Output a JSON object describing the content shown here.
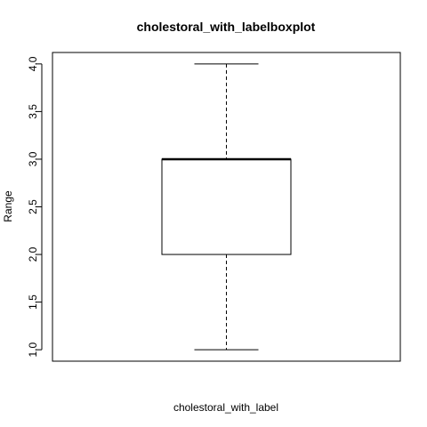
{
  "chart_data": {
    "type": "boxplot",
    "title": "cholestoral_with_labelboxplot",
    "xlabel": "cholestoral_with_label",
    "ylabel": "Range",
    "ylim": [
      0.88,
      4.12
    ],
    "yticks": [
      1.0,
      1.5,
      2.0,
      2.5,
      3.0,
      3.5,
      4.0
    ],
    "ytick_labels": [
      "1.0",
      "1.5",
      "2.0",
      "2.5",
      "3.0",
      "3.5",
      "4.0"
    ],
    "series": [
      {
        "min": 1.0,
        "q1": 2.0,
        "median": 3.0,
        "q3": 3.0,
        "max": 4.0
      }
    ],
    "grid": false,
    "legend": "none",
    "colors": {
      "box_stroke": "#000000",
      "box_fill": "#ffffff",
      "background": "#ffffff"
    }
  }
}
